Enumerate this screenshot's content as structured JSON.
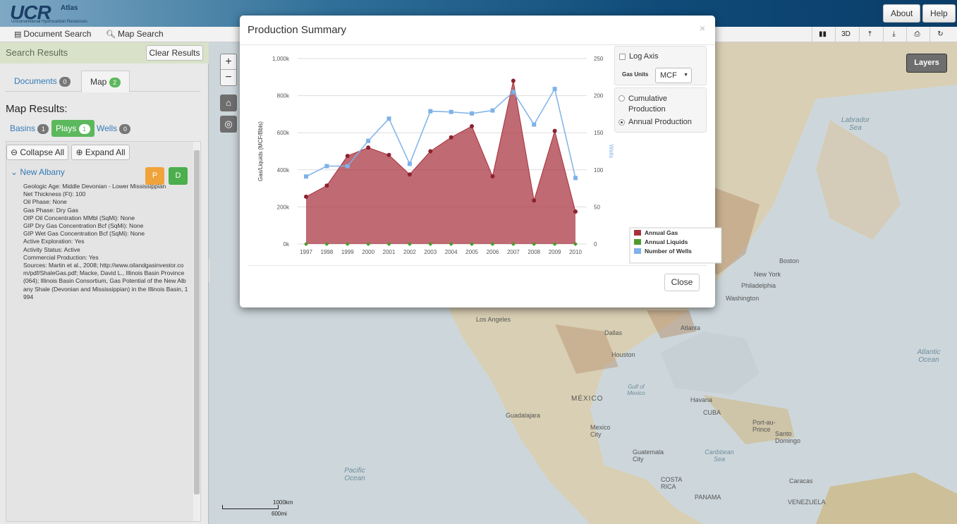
{
  "header": {
    "logo_main": "UCR",
    "logo_atlas": "Atlas",
    "logo_subtitle": "Unconventional Hydrocarbon Resources",
    "about": "About",
    "help": "Help"
  },
  "subbar": {
    "document_search": "Document Search",
    "map_search": "Map Search",
    "tools": [
      {
        "icon": "bar-chart-icon",
        "glyph": "▮▮"
      },
      {
        "icon": "3d-icon",
        "glyph": "3D"
      },
      {
        "icon": "upload-icon",
        "glyph": "⤒"
      },
      {
        "icon": "download-icon",
        "glyph": "⤓"
      },
      {
        "icon": "print-icon",
        "glyph": "⎙"
      },
      {
        "icon": "refresh-icon",
        "glyph": "↻"
      }
    ]
  },
  "sidebar": {
    "title": "Search Results",
    "clear": "Clear Results",
    "tabs": [
      {
        "label": "Documents",
        "count": "0"
      },
      {
        "label": "Map",
        "count": "2"
      }
    ],
    "map_results": "Map Results:",
    "filters": [
      {
        "label": "Basins",
        "count": "1"
      },
      {
        "label": "Plays",
        "count": "1"
      },
      {
        "label": "Wells",
        "count": "0"
      }
    ],
    "collapse_all": "Collapse All",
    "expand_all": "Expand All",
    "item": {
      "name": "New Albany",
      "p_label": "P",
      "d_label": "D",
      "details": [
        "Geologic Age: Middle Devonian - Lower Mississippian",
        "Net Thickness (Ft): 100",
        "Oil Phase: None",
        "Gas Phase: Dry Gas",
        "OIP Oil Concentration MMbl (SqMi): None",
        "GIP Dry Gas Concentration Bcf (SqMi): None",
        "GIP Wet Gas Concentration Bcf (SqMi): None",
        "Active Exploration: Yes",
        "Activity Status: Active",
        "Commercial Production: Yes",
        "Sources: Martin et al., 2008; http://www.oilandgasinvestor.com/pdf/ShaleGas.pdf; Macke, David L., Illinois Basin Province (064); Illinois Basin Consortium, Gas Potential of the New Albany Shale (Devonian and Mississippian) in the Illinois Basin, 1994"
      ]
    }
  },
  "map": {
    "layers": "Layers",
    "scale_km": "1000km",
    "scale_mi": "600mi",
    "labels": [
      "Labrador Sea",
      "Boston",
      "New York",
      "Philadelphia",
      "Washington",
      "Los Angeles",
      "Dallas",
      "Atlanta",
      "Houston",
      "MÉXICO",
      "Guadalajara",
      "Mexico City",
      "Gulf of Mexico",
      "Havana",
      "CUBA",
      "Port-au-Prince",
      "Santo Domingo",
      "Guatemala City",
      "Caribbean Sea",
      "COSTA RICA",
      "PANAMA",
      "Caracas",
      "VENEZUELA",
      "Atlantic Ocean",
      "Pacific Ocean"
    ]
  },
  "modal": {
    "title": "Production Summary",
    "close_x": "×",
    "log_axis": "Log Axis",
    "gas_units_label": "Gas Units",
    "gas_units_value": "MCF",
    "cumulative": "Cumulative Production",
    "annual": "Annual Production",
    "close_button": "Close"
  },
  "chart_data": {
    "type": "area",
    "categories": [
      "1997",
      "1998",
      "1999",
      "2000",
      "2001",
      "2002",
      "2003",
      "2004",
      "2005",
      "2006",
      "2007",
      "2008",
      "2009",
      "2010"
    ],
    "ylabel": "Gas/Liquids (MCF/Bbls)",
    "y2label": "Wells",
    "ylim": [
      0,
      1000000
    ],
    "y2lim": [
      0,
      250
    ],
    "y_ticks": [
      "0k",
      "200k",
      "400k",
      "600k",
      "800k",
      "1,000k"
    ],
    "y2_ticks": [
      "0",
      "50",
      "100",
      "150",
      "200",
      "250"
    ],
    "legend_position": "bottom-right",
    "grid": true,
    "series": [
      {
        "name": "Annual Gas",
        "color": "#a8303d",
        "axis": "left",
        "values": [
          255000,
          315000,
          475000,
          520000,
          480000,
          375000,
          500000,
          575000,
          635000,
          365000,
          880000,
          235000,
          610000,
          175000
        ]
      },
      {
        "name": "Annual Liquids",
        "color": "#4e9a2e",
        "axis": "left",
        "values": [
          0,
          0,
          0,
          0,
          0,
          0,
          0,
          0,
          0,
          0,
          0,
          0,
          0,
          0
        ]
      },
      {
        "name": "Number of Wells",
        "color": "#7eb2e8",
        "axis": "right",
        "values": [
          91,
          105,
          105,
          139,
          169,
          108,
          179,
          178,
          176,
          180,
          205,
          161,
          209,
          89
        ]
      }
    ]
  }
}
